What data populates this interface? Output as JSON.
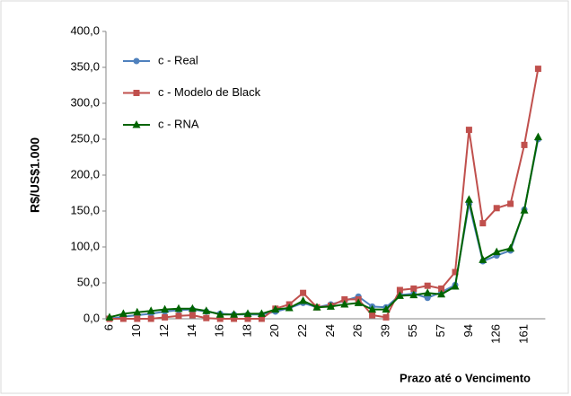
{
  "chart_data": {
    "type": "line",
    "y_label": "R$/US$1.000",
    "x_label": "Prazo até o Vencimento",
    "categories": [
      "6",
      null,
      "10",
      null,
      "12",
      null,
      "14",
      null,
      "16",
      null,
      "18",
      null,
      "20",
      null,
      "22",
      null,
      "24",
      null,
      "26",
      null,
      "39",
      null,
      "55",
      null,
      "57",
      null,
      "94",
      null,
      "126",
      null,
      "161",
      null
    ],
    "series": [
      {
        "name": "c - Real",
        "color": "#4f81bd",
        "marker": "circle",
        "values": [
          0,
          3,
          5,
          7,
          10,
          12,
          13,
          10,
          7,
          6,
          6,
          6,
          10,
          15,
          22,
          16,
          20,
          25,
          31,
          17,
          16,
          33,
          35,
          29,
          37,
          47,
          160,
          80,
          88,
          95,
          152,
          250
        ]
      },
      {
        "name": "c - Modelo de Black",
        "color": "#c0504d",
        "marker": "square",
        "values": [
          0,
          0,
          0,
          0,
          2,
          4,
          5,
          1,
          0,
          0,
          0,
          0,
          14,
          20,
          36,
          16,
          18,
          27,
          27,
          5,
          2,
          40,
          42,
          46,
          42,
          65,
          263,
          133,
          154,
          160,
          242,
          348
        ]
      },
      {
        "name": "c - RNA",
        "color": "#006400",
        "marker": "triangle",
        "values": [
          2,
          7,
          9,
          11,
          13,
          14,
          14,
          11,
          6,
          6,
          7,
          7,
          13,
          15,
          25,
          16,
          17,
          20,
          22,
          13,
          13,
          32,
          33,
          36,
          34,
          45,
          166,
          82,
          93,
          98,
          151,
          253
        ]
      }
    ],
    "ylim": [
      0,
      400
    ],
    "yticks": [
      {
        "value": 0,
        "label": "0,0"
      },
      {
        "value": 50,
        "label": "50,0"
      },
      {
        "value": 100,
        "label": "100,0"
      },
      {
        "value": 150,
        "label": "150,0"
      },
      {
        "value": 200,
        "label": "200,0"
      },
      {
        "value": 250,
        "label": "250,0"
      },
      {
        "value": 300,
        "label": "300,0"
      },
      {
        "value": 350,
        "label": "350,0"
      },
      {
        "value": 400,
        "label": "400,0"
      }
    ],
    "grid": false
  }
}
